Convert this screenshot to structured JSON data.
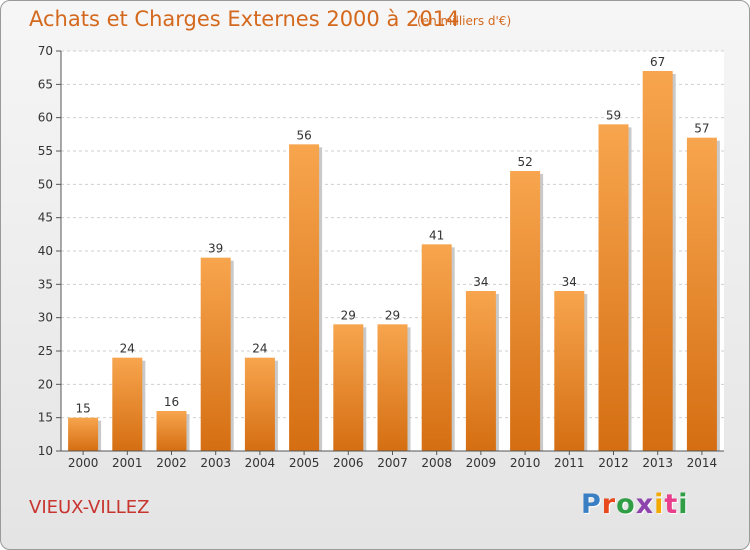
{
  "header": {
    "title": "Achats et Charges Externes 2000 à 2014",
    "subtitle": "(en milliers d'€)"
  },
  "footer": {
    "commune": "VIEUX-VILLEZ",
    "logo_text": "Proxiti",
    "logo_colors": [
      "#3a7fc4",
      "#e8491d",
      "#2f9e44",
      "#8e44ad",
      "#f2a900",
      "#e83e8c",
      "#2f9e44"
    ]
  },
  "chart_data": {
    "type": "bar",
    "title": "Achats et Charges Externes 2000 à 2014",
    "subtitle": "(en milliers d'€)",
    "categories": [
      "2000",
      "2001",
      "2002",
      "2003",
      "2004",
      "2005",
      "2006",
      "2007",
      "2008",
      "2009",
      "2010",
      "2011",
      "2012",
      "2013",
      "2014"
    ],
    "values": [
      15,
      24,
      16,
      39,
      24,
      56,
      29,
      29,
      41,
      34,
      52,
      34,
      59,
      67,
      57
    ],
    "ylim": [
      10,
      70
    ],
    "yticks": [
      10,
      15,
      20,
      25,
      30,
      35,
      40,
      45,
      50,
      55,
      60,
      65,
      70
    ],
    "grid": true,
    "bar_color_top": "#f7a54e",
    "bar_color_bottom": "#d56e12"
  }
}
